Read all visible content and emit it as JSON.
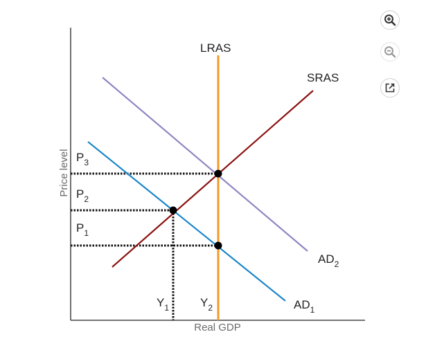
{
  "diagram": {
    "axes": {
      "x_label": "Real GDP",
      "y_label": "Price level"
    },
    "curves": {
      "lras": "LRAS",
      "sras": "SRAS",
      "ad1": {
        "base": "AD",
        "sub": "1"
      },
      "ad2": {
        "base": "AD",
        "sub": "2"
      }
    },
    "price_levels": [
      {
        "base": "P",
        "sub": "3"
      },
      {
        "base": "P",
        "sub": "2"
      },
      {
        "base": "P",
        "sub": "1"
      }
    ],
    "output_levels": [
      {
        "base": "Y",
        "sub": "1"
      },
      {
        "base": "Y",
        "sub": "2"
      }
    ],
    "colors": {
      "lras": "#f39a27",
      "sras": "#8b1010",
      "ad1": "#1a86c8",
      "ad2": "#8e86c2",
      "axes": "#222222",
      "dotted": "#111111"
    }
  },
  "toolbar": {
    "zoom_in_icon": "zoom-in-icon",
    "zoom_out_icon": "zoom-out-icon",
    "popout_icon": "external-link-icon"
  }
}
